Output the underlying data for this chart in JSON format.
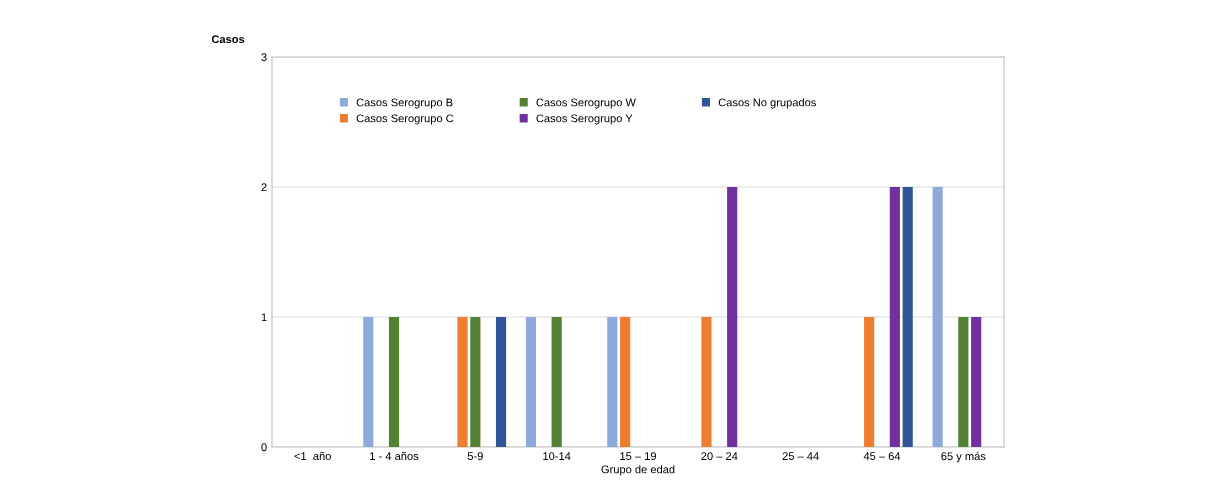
{
  "chart_data": {
    "type": "bar",
    "xlabel": "Grupo de edad",
    "ylabel": "Casos",
    "categories": [
      "<1  año",
      "1 - 4 años",
      "5-9",
      "10-14",
      "15 – 19",
      "20 – 24",
      "25 – 44",
      "45 – 64",
      "65 y más"
    ],
    "series": [
      {
        "name": "Casos Serogrupo B",
        "color": "#8eaadb",
        "values": [
          0,
          1,
          0,
          1,
          1,
          0,
          0,
          0,
          2
        ]
      },
      {
        "name": "Casos Serogrupo C",
        "color": "#ed7d31",
        "values": [
          0,
          0,
          1,
          0,
          1,
          1,
          0,
          1,
          0
        ]
      },
      {
        "name": "Casos Serogrupo W",
        "color": "#548235",
        "values": [
          0,
          1,
          1,
          1,
          0,
          0,
          0,
          0,
          1
        ]
      },
      {
        "name": "Casos Serogrupo Y",
        "color": "#7030a0",
        "values": [
          0,
          0,
          0,
          0,
          0,
          2,
          0,
          2,
          1
        ]
      },
      {
        "name": "Casos No grupados",
        "color": "#2f5597",
        "values": [
          0,
          0,
          1,
          0,
          0,
          0,
          0,
          2,
          0
        ]
      }
    ],
    "ylim": [
      0,
      3
    ],
    "yticks": [
      0,
      1,
      2,
      3
    ],
    "grid": "y",
    "legend": "top"
  }
}
